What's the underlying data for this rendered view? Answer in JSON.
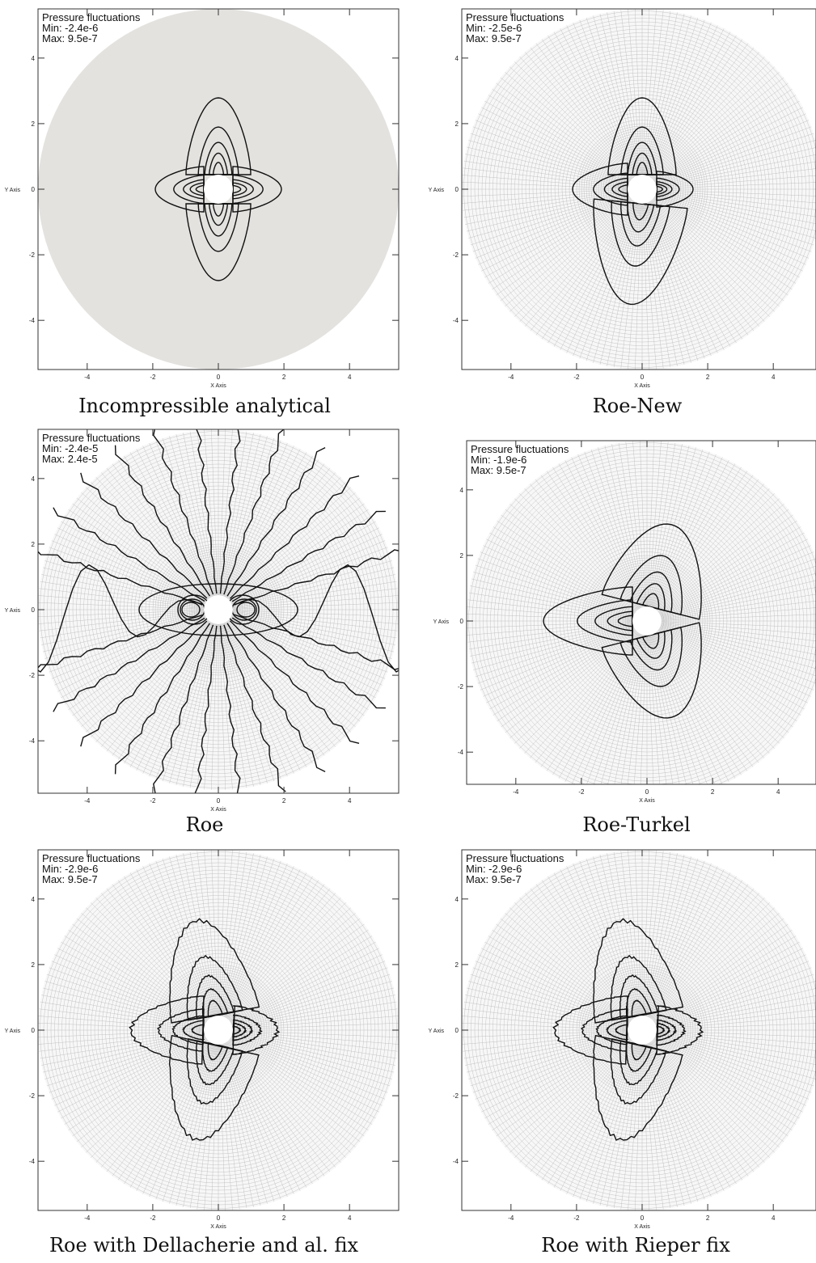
{
  "chart_data": [
    {
      "type": "contour",
      "caption": "Incompressible analytical",
      "legend_title": "Pressure fluctuations",
      "min_label": "Min: -2.4e-6",
      "max_label": "Max: 9.5e-7",
      "xlabel": "X Axis",
      "ylabel": "Y Axis",
      "x_ticks": [
        "-4",
        "-2",
        "0",
        "2",
        "4"
      ],
      "y_ticks": [
        "4",
        "2",
        "0",
        "-2",
        "-4"
      ],
      "xlim": [
        -5.5,
        5.5
      ],
      "ylim": [
        -5.5,
        5.5
      ],
      "mesh": "solid-gray",
      "pattern": "quadrupole"
    },
    {
      "type": "contour",
      "caption": "Roe-New",
      "legend_title": "Pressure fluctuations",
      "min_label": "Min: -2.5e-6",
      "max_label": "Max: 9.5e-7",
      "xlabel": "X Axis",
      "ylabel": "Y Axis",
      "x_ticks": [
        "-4",
        "-2",
        "0",
        "2",
        "4"
      ],
      "y_ticks": [
        "4",
        "2",
        "0",
        "-2",
        "-4"
      ],
      "xlim": [
        -5.5,
        5.5
      ],
      "ylim": [
        -5.5,
        5.5
      ],
      "mesh": "grid",
      "pattern": "quadrupole"
    },
    {
      "type": "contour",
      "caption": "Roe",
      "legend_title": "Pressure fluctuations",
      "min_label": "Min: -2.4e-5",
      "max_label": "Max: 2.4e-5",
      "xlabel": "X Axis",
      "ylabel": "Y Axis",
      "x_ticks": [
        "-4",
        "-2",
        "0",
        "2",
        "4"
      ],
      "y_ticks": [
        "4",
        "2",
        "0",
        "-2",
        "-4"
      ],
      "xlim": [
        -5.5,
        5.5
      ],
      "ylim": [
        -5.5,
        5.5
      ],
      "mesh": "grid",
      "pattern": "radial"
    },
    {
      "type": "contour",
      "caption": "Roe-Turkel",
      "legend_title": "Pressure fluctuations",
      "min_label": "Min: -1.9e-6",
      "max_label": "Max: 9.5e-7",
      "xlabel": "X Axis",
      "ylabel": "Y Axis",
      "x_ticks": [
        "-4",
        "-2",
        "0",
        "2",
        "4"
      ],
      "y_ticks": [
        "4",
        "2",
        "0",
        "-2",
        "-4"
      ],
      "xlim": [
        -5.5,
        5.5
      ],
      "ylim": [
        -5.5,
        5.5
      ],
      "mesh": "grid",
      "pattern": "turkel"
    },
    {
      "type": "contour",
      "caption": "Roe with Dellacherie and al. fix",
      "legend_title": "Pressure fluctuations",
      "min_label": "Min: -2.9e-6",
      "max_label": "Max: 9.5e-7",
      "xlabel": "X Axis",
      "ylabel": "Y Axis",
      "x_ticks": [
        "-4",
        "-2",
        "0",
        "2",
        "4"
      ],
      "y_ticks": [
        "4",
        "2",
        "0",
        "-2",
        "-4"
      ],
      "xlim": [
        -5.5,
        5.5
      ],
      "ylim": [
        -5.5,
        5.5
      ],
      "mesh": "grid",
      "pattern": "jagged"
    },
    {
      "type": "contour",
      "caption": "Roe with Rieper fix",
      "legend_title": "Pressure fluctuations",
      "min_label": "Min: -2.9e-6",
      "max_label": "Max: 9.5e-7",
      "xlabel": "X Axis",
      "ylabel": "Y Axis",
      "x_ticks": [
        "-4",
        "-2",
        "0",
        "2",
        "4"
      ],
      "y_ticks": [
        "4",
        "2",
        "0",
        "-2",
        "-4"
      ],
      "xlim": [
        -5.5,
        5.5
      ],
      "ylim": [
        -5.5,
        5.5
      ],
      "mesh": "grid",
      "pattern": "jagged"
    }
  ]
}
